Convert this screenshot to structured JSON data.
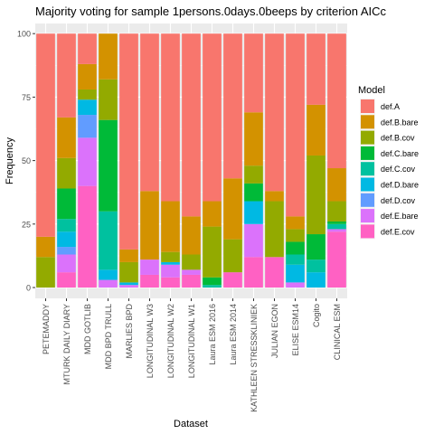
{
  "chart_data": {
    "type": "bar",
    "stacked": true,
    "title": "Majority voting for sample 1persons.0days.0beeps by criterion AICc",
    "xlabel": "Dataset",
    "ylabel": "Frequency",
    "ylim": [
      0,
      100
    ],
    "yticks": [
      0,
      25,
      50,
      75,
      100
    ],
    "grid": true,
    "legend_title": "Model",
    "legend_position": "right",
    "categories": [
      "PETEMADDY",
      "MTURK DAILY DIARY",
      "MDD GOTLIB",
      "MDD BPD TRULL",
      "MARLIES BPD",
      "LONGITUDINAL W3",
      "LONGITUDINAL W2",
      "LONGITUDINAL W1",
      "Laura ESM 2016",
      "Laura ESM 2014",
      "KATHLEEN STRESSKLINIEK",
      "JULIAN EGON",
      "ELISE ESM14",
      "Cogito",
      "CLINICAL ESM"
    ],
    "series": [
      {
        "name": "def.E.cov",
        "color": "#FF61C3",
        "values": [
          0,
          6,
          40,
          0,
          0,
          5,
          4,
          5,
          0,
          6,
          12,
          12,
          0,
          0,
          22
        ]
      },
      {
        "name": "def.E.bare",
        "color": "#DB72FB",
        "values": [
          0,
          7,
          19,
          3,
          1,
          6,
          5,
          2,
          0,
          0,
          13,
          0,
          2,
          0,
          1
        ]
      },
      {
        "name": "def.D.cov",
        "color": "#619CFF",
        "values": [
          0,
          3,
          9,
          0,
          0,
          0,
          0,
          0,
          0,
          0,
          0,
          0,
          0,
          0,
          0
        ]
      },
      {
        "name": "def.D.bare",
        "color": "#00B9E3",
        "values": [
          0,
          6,
          6,
          4,
          1,
          0,
          1,
          0,
          0,
          0,
          9,
          0,
          7,
          6,
          0
        ]
      },
      {
        "name": "def.C.cov",
        "color": "#00C19F",
        "values": [
          0,
          5,
          0,
          23,
          0,
          0,
          0,
          0,
          1,
          0,
          0,
          0,
          4,
          5,
          2
        ]
      },
      {
        "name": "def.C.bare",
        "color": "#00BA38",
        "values": [
          0,
          12,
          0,
          36,
          0,
          0,
          0,
          0,
          3,
          0,
          7,
          0,
          5,
          10,
          1
        ]
      },
      {
        "name": "def.B.cov",
        "color": "#93AA00",
        "values": [
          12,
          12,
          4,
          16,
          8,
          0,
          4,
          6,
          20,
          13,
          7,
          22,
          5,
          31,
          8
        ]
      },
      {
        "name": "def.B.bare",
        "color": "#D39200",
        "values": [
          8,
          16,
          10,
          18,
          5,
          27,
          20,
          15,
          10,
          24,
          21,
          4,
          5,
          20,
          13
        ]
      },
      {
        "name": "def.A",
        "color": "#F8766D",
        "values": [
          80,
          33,
          12,
          0,
          85,
          62,
          66,
          72,
          66,
          57,
          31,
          62,
          72,
          28,
          53
        ]
      }
    ],
    "legend_order": [
      "def.A",
      "def.B.bare",
      "def.B.cov",
      "def.C.bare",
      "def.C.cov",
      "def.D.bare",
      "def.D.cov",
      "def.E.bare",
      "def.E.cov"
    ]
  }
}
